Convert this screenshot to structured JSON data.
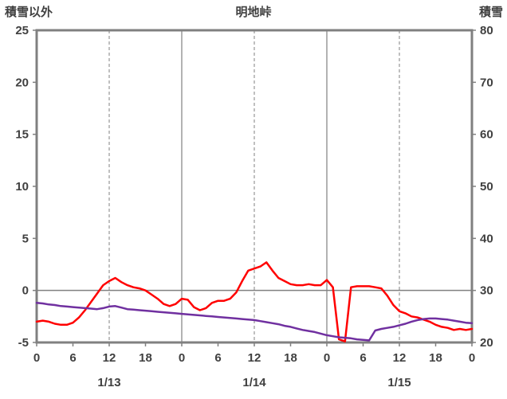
{
  "colors": {
    "background": "#FFFFFF",
    "text": "#404040",
    "grid": "#808080",
    "border": "#808080",
    "red_series": "#FF0000",
    "purple_series": "#7030A0"
  },
  "chart_data": {
    "type": "line",
    "title": "明地峠",
    "legend": "none",
    "grid": "vertical-only-plus-zero-line",
    "left_axis": {
      "label": "積雪以外",
      "min": -5,
      "max": 25,
      "step": 5,
      "ticks": [
        25,
        20,
        15,
        10,
        5,
        0,
        -5
      ]
    },
    "right_axis": {
      "label": "積雪",
      "min": 20,
      "max": 80,
      "step": 10,
      "ticks": [
        80,
        70,
        60,
        50,
        40,
        30,
        20
      ]
    },
    "x_axis": {
      "min": 0,
      "max": 72,
      "label_step": 6,
      "hour_labels": [
        "0",
        "6",
        "12",
        "18",
        "0",
        "6",
        "12",
        "18",
        "0",
        "6",
        "12",
        "18",
        "0"
      ],
      "day_labels": [
        {
          "text": "1/13",
          "hour": 12
        },
        {
          "text": "1/14",
          "hour": 36
        },
        {
          "text": "1/15",
          "hour": 60
        }
      ],
      "solid_gridline_hours": [
        24,
        48
      ],
      "dashed_gridline_hours": [
        12,
        36,
        60
      ]
    },
    "series": [
      {
        "name": "red-left-axis-series",
        "axis": "left",
        "color": "#FF0000",
        "x_start_hour": 0,
        "x_interval_hours": 1,
        "values": [
          -3.0,
          -2.9,
          -3.0,
          -3.2,
          -3.3,
          -3.3,
          -3.1,
          -2.6,
          -1.9,
          -1.1,
          -0.3,
          0.5,
          0.9,
          1.2,
          0.8,
          0.5,
          0.3,
          0.2,
          0.0,
          -0.4,
          -0.8,
          -1.3,
          -1.5,
          -1.3,
          -0.8,
          -0.9,
          -1.6,
          -1.9,
          -1.7,
          -1.2,
          -1.0,
          -1.0,
          -0.8,
          -0.2,
          0.9,
          1.9,
          2.1,
          2.3,
          2.7,
          1.9,
          1.2,
          0.9,
          0.6,
          0.5,
          0.5,
          0.6,
          0.5,
          0.5,
          1.0,
          0.3,
          -4.7,
          -4.9,
          0.3,
          0.4,
          0.4,
          0.4,
          0.3,
          0.2,
          -0.5,
          -1.4,
          -2.0,
          -2.2,
          -2.5,
          -2.6,
          -2.8,
          -3.0,
          -3.3,
          -3.5,
          -3.6,
          -3.8,
          -3.7,
          -3.8,
          -3.7
        ]
      },
      {
        "name": "purple-right-axis-series",
        "axis": "right",
        "color": "#7030A0",
        "x_start_hour": 0,
        "x_interval_hours": 1,
        "values": [
          27.6,
          27.5,
          27.3,
          27.2,
          27.0,
          26.9,
          26.8,
          26.7,
          26.6,
          26.5,
          26.4,
          26.6,
          26.9,
          27.0,
          26.7,
          26.4,
          26.3,
          26.2,
          26.1,
          26.0,
          25.9,
          25.8,
          25.7,
          25.6,
          25.5,
          25.4,
          25.3,
          25.2,
          25.1,
          25.0,
          24.9,
          24.8,
          24.7,
          24.6,
          24.5,
          24.4,
          24.3,
          24.1,
          23.9,
          23.7,
          23.5,
          23.2,
          23.0,
          22.7,
          22.4,
          22.2,
          22.0,
          21.7,
          21.4,
          21.2,
          21.0,
          20.9,
          20.8,
          20.6,
          20.5,
          20.4,
          22.3,
          22.6,
          22.8,
          23.0,
          23.3,
          23.6,
          24.0,
          24.3,
          24.5,
          24.6,
          24.6,
          24.5,
          24.4,
          24.2,
          24.0,
          23.8,
          23.7
        ]
      }
    ]
  }
}
